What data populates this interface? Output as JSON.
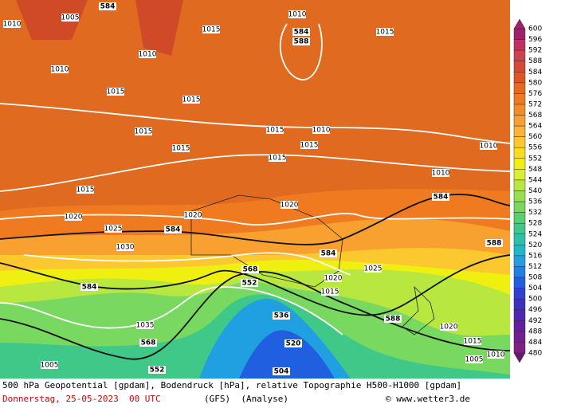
{
  "footer": {
    "line1": "500 hPa Geopotential [gpdam], Bodendruck [hPa], relative Topographie H500-H1000 [gpdam]",
    "date": "Donnerstag, 25-05-2023  00 UTC",
    "model": "(GFS)  (Analyse)",
    "copyright": "© www.wetter3.de"
  },
  "colorbar": {
    "levels": [
      600,
      596,
      592,
      588,
      584,
      580,
      576,
      572,
      568,
      564,
      560,
      556,
      552,
      548,
      544,
      540,
      536,
      532,
      528,
      524,
      520,
      516,
      512,
      508,
      504,
      500,
      496,
      492,
      488,
      484,
      480
    ],
    "colors": [
      "#a0206a",
      "#c03060",
      "#d04050",
      "#d84838",
      "#e05528",
      "#e86820",
      "#f07a20",
      "#f48c28",
      "#f8a030",
      "#fcb438",
      "#fcc830",
      "#f8dc20",
      "#f0f010",
      "#d8f030",
      "#b8e840",
      "#98e050",
      "#78d860",
      "#58d070",
      "#40c888",
      "#30c0a8",
      "#20b8c8",
      "#20a0e0",
      "#2080e8",
      "#2060e0",
      "#3040d0",
      "#4030c0",
      "#5028b0",
      "#6020a0",
      "#702090",
      "#802080",
      "#6a1a6a"
    ]
  },
  "contour_labels": [
    "584",
    "1010",
    "1005",
    "1010",
    "1010",
    "1015",
    "1010",
    "584",
    "588",
    "1015",
    "1015",
    "1015",
    "1015",
    "1015",
    "1015",
    "1010",
    "1015",
    "1015",
    "1010",
    "1010",
    "1015",
    "584",
    "1020",
    "1020",
    "1020",
    "1025",
    "584",
    "1030",
    "584",
    "588",
    "1025",
    "584",
    "568",
    "552",
    "1020",
    "1015",
    "536",
    "588",
    "1035",
    "568",
    "520",
    "1005",
    "552",
    "504",
    "1020",
    "1015",
    "1010",
    "1005"
  ]
}
